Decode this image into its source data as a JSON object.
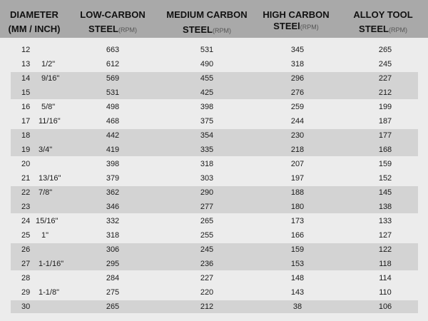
{
  "header": {
    "columns": [
      {
        "line1": "DIAMETER",
        "line2": "(MM / INCH)",
        "unit": ""
      },
      {
        "line1": "LOW-CARBON",
        "line2": "STEEL",
        "unit": "(RPM)"
      },
      {
        "line1": "MEDIUM CARBON",
        "line2": "STEEL",
        "unit": "(RPM)"
      },
      {
        "line1": "HIGH CARBON",
        "line2": "STEEl",
        "unit": "(RPM)"
      },
      {
        "line1": "ALLOY TOOL",
        "line2": "STEEL",
        "unit": "(RPM)"
      }
    ]
  },
  "rows": [
    {
      "mm": "12",
      "inch": "",
      "low": "663",
      "medium": "531",
      "high": "345",
      "alloy": "265"
    },
    {
      "mm": "13",
      "inch": "1/2\"",
      "low": "612",
      "medium": "490",
      "high": "318",
      "alloy": "245"
    },
    {
      "mm": "14",
      "inch": "9/16\"",
      "low": "569",
      "medium": "455",
      "high": "296",
      "alloy": "227"
    },
    {
      "mm": "15",
      "inch": "",
      "low": "531",
      "medium": "425",
      "high": "276",
      "alloy": "212"
    },
    {
      "mm": "16",
      "inch": "5/8\"",
      "low": "498",
      "medium": "398",
      "high": "259",
      "alloy": "199"
    },
    {
      "mm": "17",
      "inch": "11/16\"",
      "low": "468",
      "medium": "375",
      "high": "244",
      "alloy": "187"
    },
    {
      "mm": "18",
      "inch": "",
      "low": "442",
      "medium": "354",
      "high": "230",
      "alloy": "177"
    },
    {
      "mm": "19",
      "inch": "3/4\"",
      "low": "419",
      "medium": "335",
      "high": "218",
      "alloy": "168"
    },
    {
      "mm": "20",
      "inch": "",
      "low": "398",
      "medium": "318",
      "high": "207",
      "alloy": "159"
    },
    {
      "mm": "21",
      "inch": "13/16\"",
      "low": "379",
      "medium": "303",
      "high": "197",
      "alloy": "152"
    },
    {
      "mm": "22",
      "inch": "7/8\"",
      "low": "362",
      "medium": "290",
      "high": "188",
      "alloy": "145"
    },
    {
      "mm": "23",
      "inch": "",
      "low": "346",
      "medium": "277",
      "high": "180",
      "alloy": "138"
    },
    {
      "mm": "24",
      "inch": "15/16\"",
      "low": "332",
      "medium": "265",
      "high": "173",
      "alloy": "133"
    },
    {
      "mm": "25",
      "inch": "1\"",
      "low": "318",
      "medium": "255",
      "high": "166",
      "alloy": "127"
    },
    {
      "mm": "26",
      "inch": "",
      "low": "306",
      "medium": "245",
      "high": "159",
      "alloy": "122"
    },
    {
      "mm": "27",
      "inch": "1-1/16\"",
      "low": "295",
      "medium": "236",
      "high": "153",
      "alloy": "118"
    },
    {
      "mm": "28",
      "inch": "",
      "low": "284",
      "medium": "227",
      "high": "148",
      "alloy": "114"
    },
    {
      "mm": "29",
      "inch": "1-1/8\"",
      "low": "275",
      "medium": "220",
      "high": "143",
      "alloy": "110"
    },
    {
      "mm": "30",
      "inch": "",
      "low": "265",
      "medium": "212",
      "high": "38",
      "alloy": "106"
    }
  ],
  "colors": {
    "header_bg": "#a9a9a9",
    "body_bg": "#ececec",
    "stripe": "#d3d3d3"
  }
}
